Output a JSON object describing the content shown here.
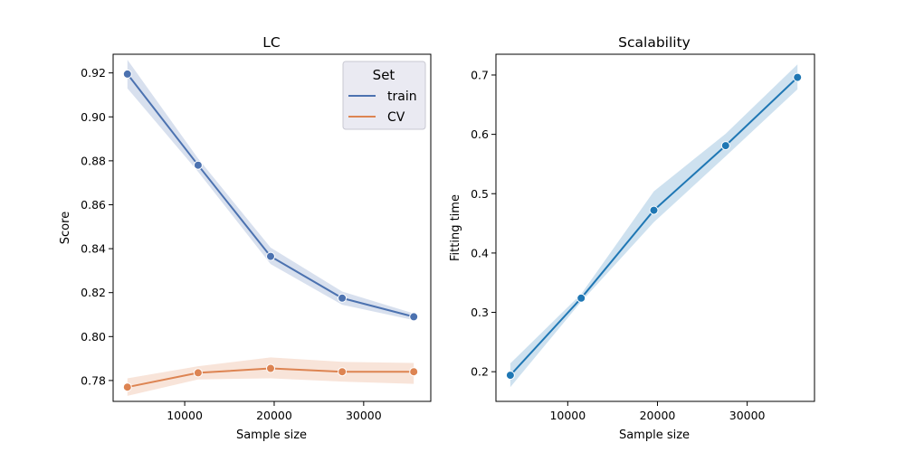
{
  "chart_data": [
    {
      "id": "lc",
      "type": "line",
      "title": "LC",
      "xlabel": "Sample size",
      "ylabel": "Score",
      "xlim": [
        2000,
        37500
      ],
      "ylim": [
        0.7705,
        0.9285
      ],
      "xticks": [
        10000,
        20000,
        30000
      ],
      "xtick_labels": [
        "10000",
        "20000",
        "30000"
      ],
      "yticks": [
        0.78,
        0.8,
        0.82,
        0.84,
        0.86,
        0.88,
        0.9,
        0.92
      ],
      "ytick_labels": [
        "0.78",
        "0.80",
        "0.82",
        "0.84",
        "0.86",
        "0.88",
        "0.90",
        "0.92"
      ],
      "legend": {
        "title": "Set",
        "position": "top-right"
      },
      "series": [
        {
          "name": "train",
          "color": "#4c72b0",
          "x": [
            3600,
            11500,
            19600,
            27600,
            35600
          ],
          "y": [
            0.9195,
            0.878,
            0.8365,
            0.8175,
            0.809
          ],
          "lower": [
            0.913,
            0.875,
            0.833,
            0.8145,
            0.8075
          ],
          "upper": [
            0.926,
            0.881,
            0.8405,
            0.8205,
            0.8105
          ]
        },
        {
          "name": "CV",
          "color": "#dd8452",
          "x": [
            3600,
            11500,
            19600,
            27600,
            35600
          ],
          "y": [
            0.777,
            0.7835,
            0.7855,
            0.784,
            0.784
          ],
          "lower": [
            0.773,
            0.7805,
            0.781,
            0.7795,
            0.7785
          ],
          "upper": [
            0.781,
            0.7865,
            0.7905,
            0.7885,
            0.788
          ]
        }
      ]
    },
    {
      "id": "scalability",
      "type": "line",
      "title": "Scalability",
      "xlabel": "Sample size",
      "ylabel": "Fitting time",
      "xlim": [
        2000,
        37500
      ],
      "ylim": [
        0.15,
        0.735
      ],
      "xticks": [
        10000,
        20000,
        30000
      ],
      "xtick_labels": [
        "10000",
        "20000",
        "30000"
      ],
      "yticks": [
        0.2,
        0.3,
        0.4,
        0.5,
        0.6,
        0.7
      ],
      "ytick_labels": [
        "0.2",
        "0.3",
        "0.4",
        "0.5",
        "0.6",
        "0.7"
      ],
      "series": [
        {
          "color": "#1f77b4",
          "x": [
            3600,
            11500,
            19600,
            27600,
            35600
          ],
          "y": [
            0.194,
            0.324,
            0.472,
            0.581,
            0.696
          ],
          "lower": [
            0.174,
            0.318,
            0.452,
            0.563,
            0.676
          ],
          "upper": [
            0.214,
            0.331,
            0.504,
            0.601,
            0.718
          ]
        }
      ]
    }
  ]
}
